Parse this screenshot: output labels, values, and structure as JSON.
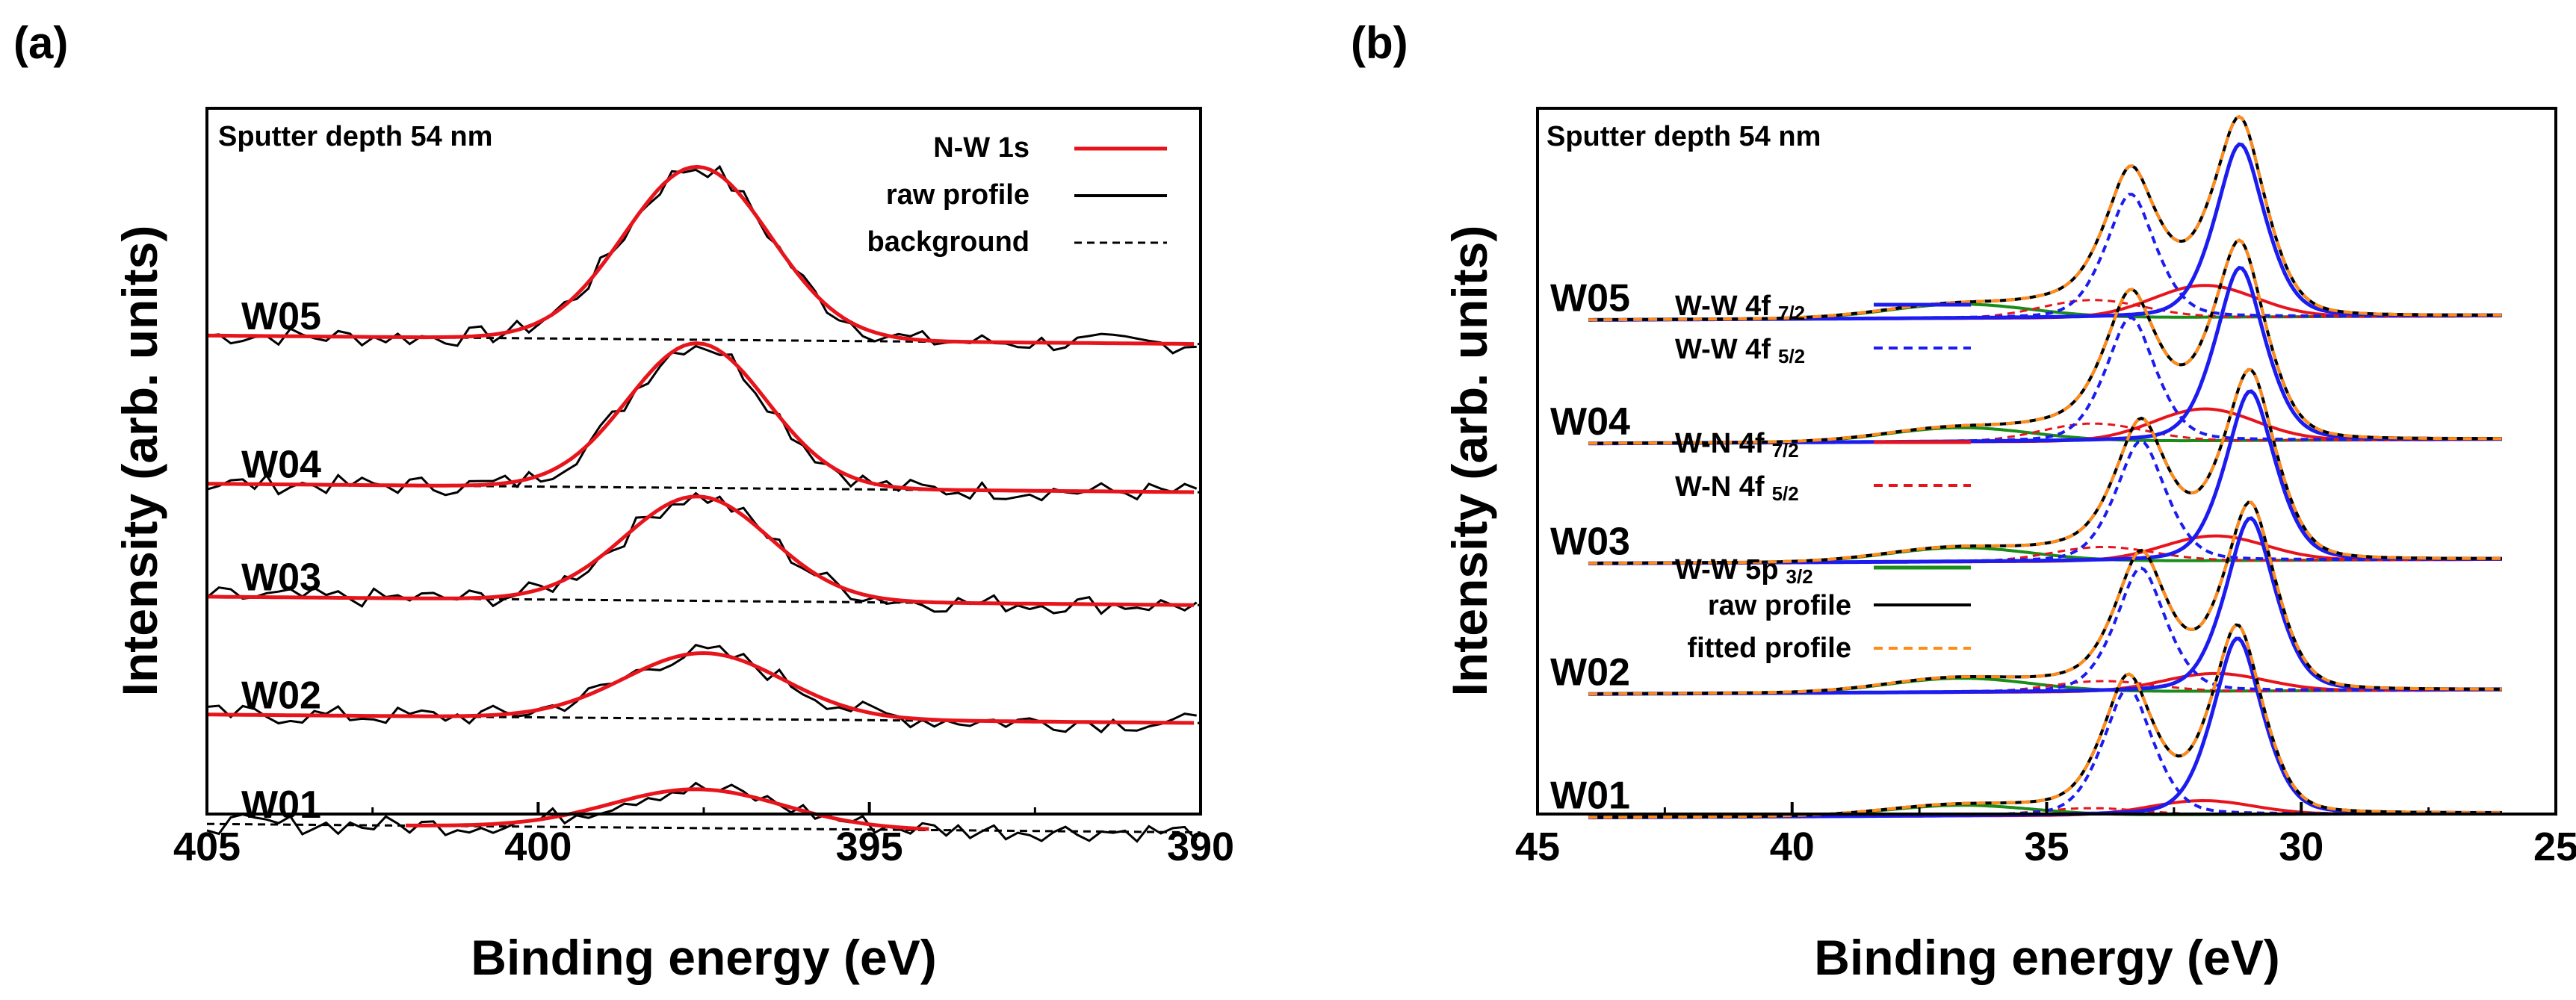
{
  "figure": {
    "panels": [
      "(a)",
      "(b)"
    ]
  },
  "chart_data": [
    {
      "panel_label": "(a)",
      "type": "line",
      "annotation": "Sputter depth 54 nm",
      "xlabel": "Binding energy (eV)",
      "ylabel": "Intensity (arb. units)",
      "xlim": [
        405,
        390
      ],
      "ylim": [
        0,
        1
      ],
      "x_reversed": true,
      "x_ticks": [
        405,
        400,
        395,
        390
      ],
      "legend_position": "top-right",
      "legend": [
        {
          "label": "N-W 1s",
          "color": "#e8141c",
          "style": "solid"
        },
        {
          "label": "raw profile",
          "color": "#000000",
          "style": "solid"
        },
        {
          "label": "background",
          "color": "#000000",
          "style": "dashed"
        }
      ],
      "samples": [
        {
          "name": "W05",
          "baseline": 0.672,
          "peak_center": 397.6,
          "peak_height": 0.245,
          "peak_width": 1.1,
          "fit_range": [
            405,
            390
          ]
        },
        {
          "name": "W04",
          "baseline": 0.462,
          "peak_center": 397.6,
          "peak_height": 0.205,
          "peak_width": 1.05,
          "fit_range": [
            405,
            390
          ]
        },
        {
          "name": "W03",
          "baseline": 0.302,
          "peak_center": 397.6,
          "peak_height": 0.148,
          "peak_width": 1.1,
          "fit_range": [
            405,
            390
          ]
        },
        {
          "name": "W02",
          "baseline": 0.135,
          "peak_center": 397.5,
          "peak_height": 0.093,
          "peak_width": 1.2,
          "fit_range": [
            405,
            390
          ]
        },
        {
          "name": "W01",
          "baseline": -0.02,
          "peak_center": 397.6,
          "peak_height": 0.055,
          "peak_width": 1.3,
          "fit_range": [
            402.0,
            394.0
          ]
        }
      ]
    },
    {
      "panel_label": "(b)",
      "type": "line",
      "annotation": "Sputter depth 54 nm",
      "xlabel": "Binding energy (eV)",
      "ylabel": "Intensity (arb. units)",
      "xlim": [
        45,
        25
      ],
      "ylim": [
        0,
        1
      ],
      "x_reversed": true,
      "x_ticks": [
        45,
        40,
        35,
        30,
        25
      ],
      "data_range": [
        44,
        26
      ],
      "legend_position": "center-left",
      "legend": [
        {
          "label": "W-W 4f",
          "sub": "7/2",
          "color": "#1c1cf0",
          "style": "solid"
        },
        {
          "label": "W-W 4f",
          "sub": "5/2",
          "color": "#1c1cf0",
          "style": "dashed"
        },
        {
          "label": "W-N 4f",
          "sub": "7/2",
          "color": "#e8141c",
          "style": "solid"
        },
        {
          "label": "W-N 4f",
          "sub": "5/2",
          "color": "#e8141c",
          "style": "dashed"
        },
        {
          "label": "W-W 5p",
          "sub": "3/2",
          "color": "#1a8c1a",
          "style": "solid"
        },
        {
          "label": "raw profile",
          "sub": "",
          "color": "#000000",
          "style": "solid"
        },
        {
          "label": "fitted profile",
          "sub": "",
          "color": "#ff8c1a",
          "style": "dashed"
        }
      ],
      "components": {
        "W-W 4f 7/2": {
          "center": 31.2,
          "width": 0.55
        },
        "W-W 4f 5/2": {
          "center": 33.35,
          "width": 0.55
        },
        "W-N 4f 7/2": {
          "center": 31.9,
          "width": 1.0
        },
        "W-N 4f 5/2": {
          "center": 34.1,
          "width": 1.0
        },
        "W-W 5p 3/2": {
          "center": 36.7,
          "width": 1.4
        }
      },
      "samples": [
        {
          "name": "W05",
          "baseline": 0.7,
          "shift": 0.0,
          "ww72": 0.245,
          "ww52": 0.175,
          "wn72": 0.045,
          "wn52": 0.025,
          "wp": 0.02
        },
        {
          "name": "W04",
          "baseline": 0.525,
          "shift": 0.0,
          "ww72": 0.245,
          "ww52": 0.175,
          "wn72": 0.045,
          "wn52": 0.025,
          "wp": 0.02
        },
        {
          "name": "W03",
          "baseline": 0.355,
          "shift": -0.2,
          "ww72": 0.24,
          "ww52": 0.17,
          "wn72": 0.035,
          "wn52": 0.02,
          "wp": 0.02
        },
        {
          "name": "W02",
          "baseline": 0.17,
          "shift": -0.2,
          "ww72": 0.245,
          "ww52": 0.175,
          "wn72": 0.025,
          "wn52": 0.015,
          "wp": 0.02
        },
        {
          "name": "W01",
          "baseline": -0.005,
          "shift": 0.05,
          "ww72": 0.25,
          "ww52": 0.18,
          "wn72": 0.02,
          "wn52": 0.01,
          "wp": 0.015
        }
      ]
    }
  ]
}
